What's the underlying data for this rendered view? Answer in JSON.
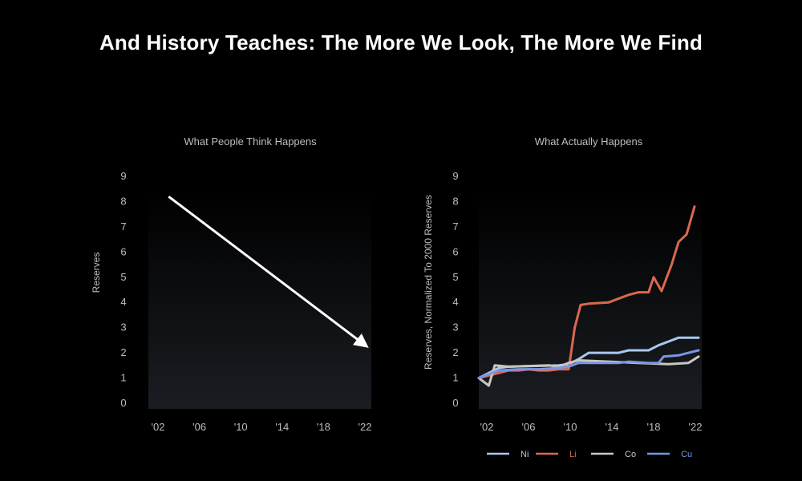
{
  "title": "And History Teaches: The More We Look, The More We Find",
  "colors": {
    "background": "#000000",
    "text": "#ffffff",
    "tick_text": "#bdbdbd",
    "Ni": "#a9c8f0",
    "Li": "#d9694f",
    "Co": "#c8c8c0",
    "Cu": "#7b95e6",
    "arrow": "#ffffff"
  },
  "chart_data": [
    {
      "type": "line",
      "title": "What People Think Happens",
      "ylabel": "Reserves",
      "xlabel": "",
      "x_ticks": [
        "'02",
        "'06",
        "'10",
        "'14",
        "'18",
        "'22"
      ],
      "y_ticks": [
        "0",
        "1",
        "2",
        "3",
        "4",
        "5",
        "6",
        "7",
        "8",
        "9"
      ],
      "xlim": [
        2000,
        2022
      ],
      "ylim": [
        0,
        9
      ],
      "grid": false,
      "annotation": {
        "type": "arrow",
        "from": {
          "x": 2002,
          "y": 8.2
        },
        "to": {
          "x": 2021.4,
          "y": 2.3
        }
      }
    },
    {
      "type": "line",
      "title": "What Actually Happens",
      "ylabel": "Reserves, Normalized To 2000 Reserves",
      "xlabel": "",
      "x_ticks": [
        "'02",
        "'06",
        "'10",
        "'14",
        "'18",
        "'22"
      ],
      "y_ticks": [
        "0",
        "1",
        "2",
        "3",
        "4",
        "5",
        "6",
        "7",
        "8",
        "9"
      ],
      "xlim": [
        2000,
        2022
      ],
      "ylim": [
        0,
        9
      ],
      "grid": false,
      "legend_position": "bottom",
      "series": [
        {
          "name": "Ni",
          "points": [
            [
              2000,
              1.0
            ],
            [
              2002,
              1.4
            ],
            [
              2003,
              1.45
            ],
            [
              2008,
              1.5
            ],
            [
              2009,
              1.55
            ],
            [
              2010,
              1.75
            ],
            [
              2011,
              2.0
            ],
            [
              2014,
              2.0
            ],
            [
              2015,
              2.1
            ],
            [
              2017,
              2.1
            ],
            [
              2018,
              2.3
            ],
            [
              2019,
              2.45
            ],
            [
              2020,
              2.6
            ],
            [
              2022,
              2.6
            ]
          ]
        },
        {
          "name": "Li",
          "points": [
            [
              2000,
              1.0
            ],
            [
              2001,
              1.1
            ],
            [
              2002,
              1.2
            ],
            [
              2003,
              1.3
            ],
            [
              2004,
              1.3
            ],
            [
              2005,
              1.35
            ],
            [
              2006,
              1.3
            ],
            [
              2007,
              1.3
            ],
            [
              2008,
              1.35
            ],
            [
              2009,
              1.35
            ],
            [
              2009.6,
              3.0
            ],
            [
              2010.2,
              3.9
            ],
            [
              2011,
              3.95
            ],
            [
              2013,
              4.0
            ],
            [
              2015,
              4.3
            ],
            [
              2016,
              4.4
            ],
            [
              2017,
              4.4
            ],
            [
              2017.5,
              5.0
            ],
            [
              2018.3,
              4.45
            ],
            [
              2019.3,
              5.5
            ],
            [
              2020,
              6.4
            ],
            [
              2020.8,
              6.7
            ],
            [
              2021.6,
              7.8
            ]
          ]
        },
        {
          "name": "Co",
          "points": [
            [
              2000,
              1.0
            ],
            [
              2001,
              0.7
            ],
            [
              2001.6,
              1.5
            ],
            [
              2003,
              1.45
            ],
            [
              2007,
              1.5
            ],
            [
              2008,
              1.45
            ],
            [
              2009,
              1.6
            ],
            [
              2010,
              1.7
            ],
            [
              2013,
              1.65
            ],
            [
              2016,
              1.6
            ],
            [
              2019,
              1.55
            ],
            [
              2021,
              1.6
            ],
            [
              2022,
              1.85
            ]
          ]
        },
        {
          "name": "Cu",
          "points": [
            [
              2000,
              1.0
            ],
            [
              2002,
              1.3
            ],
            [
              2004,
              1.35
            ],
            [
              2006,
              1.35
            ],
            [
              2008,
              1.4
            ],
            [
              2009,
              1.45
            ],
            [
              2010,
              1.6
            ],
            [
              2012,
              1.6
            ],
            [
              2014,
              1.6
            ],
            [
              2015,
              1.65
            ],
            [
              2017,
              1.6
            ],
            [
              2018,
              1.6
            ],
            [
              2018.5,
              1.85
            ],
            [
              2020,
              1.9
            ],
            [
              2021,
              2.0
            ],
            [
              2022,
              2.1
            ]
          ]
        }
      ]
    }
  ]
}
